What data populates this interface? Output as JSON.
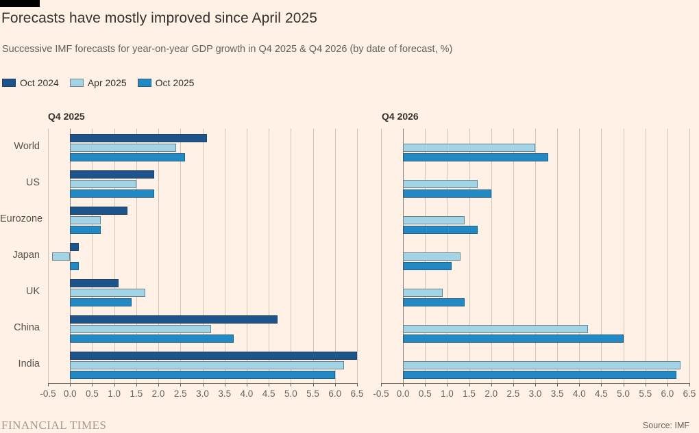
{
  "header": {
    "title": "Forecasts have mostly improved since April 2025",
    "subtitle": "Successive IMF forecasts for year-on-year GDP growth in Q4 2025 & Q4 2026 (by date of forecast, %)"
  },
  "legend": [
    {
      "label": "Oct 2024",
      "color": "#1d548c"
    },
    {
      "label": "Apr 2025",
      "color": "#a2d4e6"
    },
    {
      "label": "Oct 2025",
      "color": "#2189c4"
    }
  ],
  "colors": {
    "background": "#FFF1E5",
    "oct_2024": "#1d548c",
    "apr_2025": "#a2d4e6",
    "oct_2025": "#2189c4",
    "gridline": "#cfc4b6",
    "axis": "#66605b",
    "title_text": "#33302e"
  },
  "chart_data": {
    "type": "bar",
    "orientation": "horizontal",
    "title": "Forecasts have mostly improved since April 2025",
    "subtitle": "Successive IMF forecasts for year-on-year GDP growth in Q4 2025 & Q4 2026 (by date of forecast, %)",
    "unit": "%",
    "categories": [
      "World",
      "US",
      "Eurozone",
      "Japan",
      "UK",
      "China",
      "India"
    ],
    "x_axis": {
      "min": -0.5,
      "max": 6.5,
      "tick_labels": [
        "-0.5",
        "0.0",
        "0.5",
        "1.0",
        "1.5",
        "2.0",
        "2.5",
        "3.0",
        "3.5",
        "4.0",
        "4.5",
        "5.0",
        "5.5",
        "6.0",
        "6.5"
      ]
    },
    "legend_position": "top",
    "grid": true,
    "panels": [
      {
        "title": "Q4 2025",
        "series": [
          {
            "name": "Oct 2024",
            "color": "#1d548c",
            "values": [
              3.1,
              1.9,
              1.3,
              0.2,
              1.1,
              4.7,
              6.5
            ]
          },
          {
            "name": "Apr 2025",
            "color": "#a2d4e6",
            "values": [
              2.4,
              1.5,
              0.7,
              -0.4,
              1.7,
              3.2,
              6.2
            ]
          },
          {
            "name": "Oct 2025",
            "color": "#2189c4",
            "values": [
              2.6,
              1.9,
              0.7,
              0.2,
              1.4,
              3.7,
              6.0
            ]
          }
        ]
      },
      {
        "title": "Q4 2026",
        "series": [
          {
            "name": "Oct 2024",
            "color": "#1d548c",
            "values": [
              null,
              null,
              null,
              null,
              null,
              null,
              null
            ]
          },
          {
            "name": "Apr 2025",
            "color": "#a2d4e6",
            "values": [
              3.0,
              1.7,
              1.4,
              1.3,
              0.9,
              4.2,
              6.3
            ]
          },
          {
            "name": "Oct 2025",
            "color": "#2189c4",
            "values": [
              3.3,
              2.0,
              1.7,
              1.1,
              1.4,
              5.0,
              6.2
            ]
          }
        ]
      }
    ]
  },
  "footer": {
    "brand": "FINANCIAL TIMES",
    "source": "Source: IMF"
  }
}
